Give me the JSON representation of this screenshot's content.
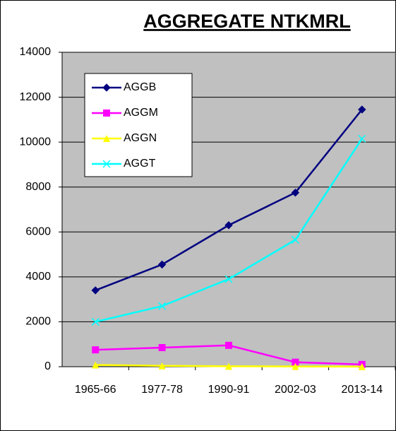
{
  "chart_data": {
    "type": "line",
    "title": "AGGREGATE NTKMRL",
    "categories": [
      "1965-66",
      "1977-78",
      "1990-91",
      "2002-03",
      "2013-14"
    ],
    "series": [
      {
        "name": "AGGB",
        "color": "#000080",
        "marker": "diamond",
        "values": [
          3400,
          4550,
          6300,
          7750,
          11450
        ]
      },
      {
        "name": "AGGM",
        "color": "#ff00ff",
        "marker": "square",
        "values": [
          750,
          850,
          950,
          200,
          100
        ]
      },
      {
        "name": "AGGN",
        "color": "#ffff00",
        "marker": "triangle",
        "values": [
          80,
          40,
          20,
          10,
          5
        ]
      },
      {
        "name": "AGGT",
        "color": "#00ffff",
        "marker": "x",
        "values": [
          2000,
          2700,
          3900,
          5650,
          10150
        ]
      }
    ],
    "ylim": [
      0,
      14000
    ],
    "yticks": [
      0,
      2000,
      4000,
      6000,
      8000,
      10000,
      12000,
      14000
    ],
    "grid": true,
    "legend": "upper-left",
    "plot_background": "#c0c0c0"
  }
}
